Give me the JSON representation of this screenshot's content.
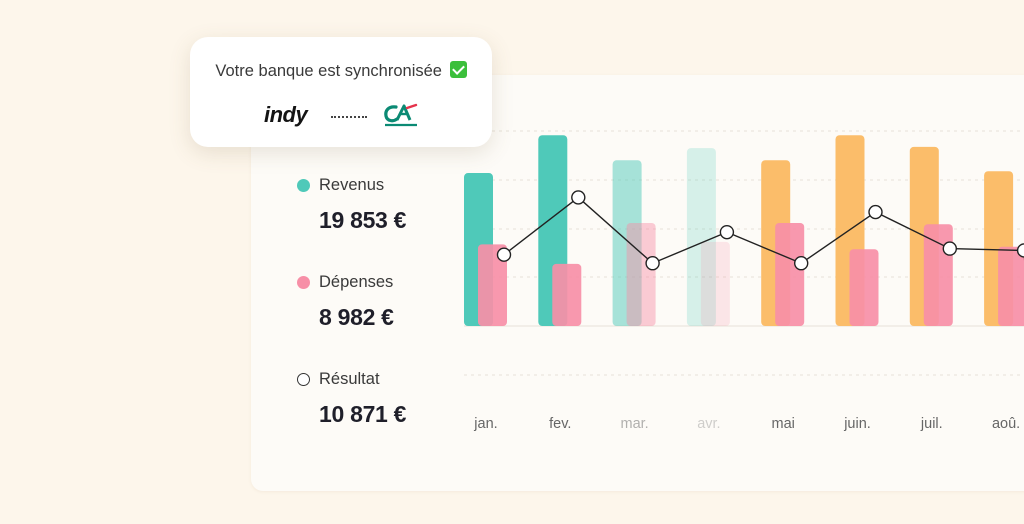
{
  "popup": {
    "title": "Votre banque est synchronisée",
    "check_icon": "check-mark-icon",
    "logo_left_text": "indy",
    "logo_right_icon": "credit-agricole-logo-icon"
  },
  "legend": [
    {
      "label": "Revenus",
      "value": "19 853 €",
      "color": "#4fc9b9",
      "icon": "filled-dot-icon"
    },
    {
      "label": "Dépenses",
      "value": "8 982 €",
      "color": "#f78fa7",
      "icon": "filled-dot-icon"
    },
    {
      "label": "Résultat",
      "value": "10 871 €",
      "color": "#333333",
      "icon": "hollow-dot-icon"
    }
  ],
  "chart_data": {
    "type": "bar",
    "categories": [
      "jan.",
      "fev.",
      "mar.",
      "avr.",
      "mai",
      "juin.",
      "juil.",
      "aoû."
    ],
    "series": [
      {
        "name": "Revenus",
        "values": [
          2510,
          3130,
          2720,
          2920,
          2720,
          3130,
          2940,
          2540
        ]
      },
      {
        "name": "Dépenses",
        "values": [
          1340,
          1020,
          1690,
          1380,
          1690,
          1260,
          1670,
          1300
        ]
      },
      {
        "name": "Résultat",
        "type": "line",
        "values": [
          1170,
          2110,
          1030,
          1540,
          1030,
          1870,
          1270,
          1240
        ]
      }
    ],
    "ylim": [
      0,
      3200
    ],
    "grid": true,
    "colors": {
      "revenus_teal": "#4fc9b9",
      "revenus_orange": "#fbbd6a",
      "depenses": "#f78fa7",
      "line": "#222222",
      "grid": "#e6e1d8",
      "label": "#666666"
    },
    "faded_categories": [
      2,
      3
    ],
    "orange_from_index": 4
  }
}
